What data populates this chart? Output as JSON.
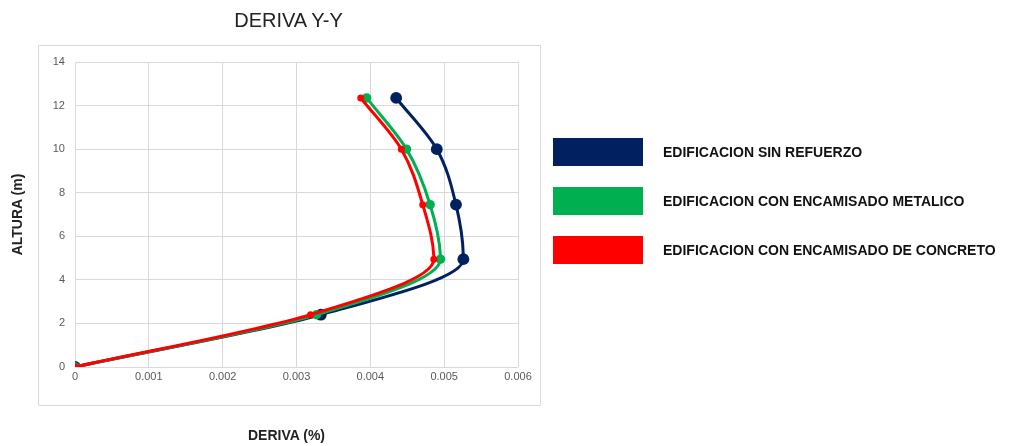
{
  "chart_data": {
    "type": "line",
    "title": "DERIVA Y-Y",
    "xlabel": "DERIVA (%)",
    "ylabel": "ALTURA (m)",
    "xlim": [
      0,
      0.006
    ],
    "xticks": [
      0,
      0.001,
      0.002,
      0.003,
      0.004,
      0.005,
      0.006
    ],
    "ylim": [
      0,
      14
    ],
    "yticks": [
      0,
      2,
      4,
      6,
      8,
      10,
      12,
      14
    ],
    "grid": true,
    "legend": "right",
    "marker": "circle",
    "series": [
      {
        "name": "EDIFICACION SIN REFUERZO",
        "color": "#002060",
        "x": [
          0,
          0.00333,
          0.00526,
          0.00516,
          0.0049,
          0.00435
        ],
        "values": [
          0,
          2.4,
          4.95,
          7.45,
          10,
          12.35
        ]
      },
      {
        "name": "EDIFICACION CON ENCAMISADO METALICO",
        "color": "#00b050",
        "x": [
          0,
          0.00327,
          0.00495,
          0.00481,
          0.00449,
          0.00395
        ],
        "values": [
          0,
          2.4,
          4.95,
          7.45,
          10,
          12.35
        ]
      },
      {
        "name": "EDIFICACION CON ENCAMISADO DE CONCRETO",
        "color": "#ff0000",
        "x": [
          0,
          0.00319,
          0.00486,
          0.00471,
          0.00442,
          0.00387
        ],
        "values": [
          0,
          2.4,
          4.95,
          7.45,
          10,
          12.35
        ]
      }
    ]
  }
}
